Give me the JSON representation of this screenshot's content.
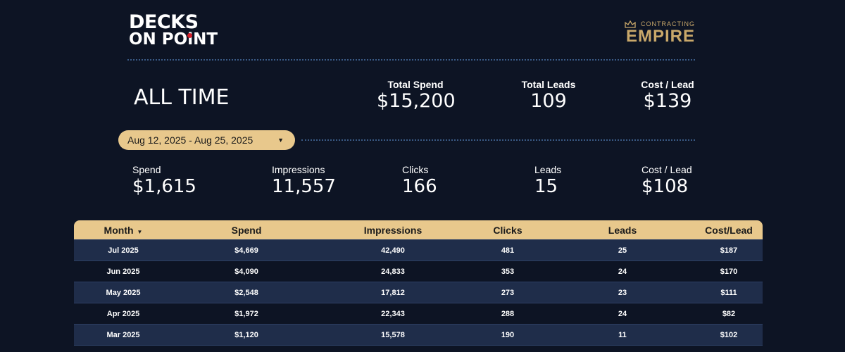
{
  "header": {
    "brand_line1": "DECKS",
    "brand_line2": "ON POiNT",
    "partner_small": "CONTRACTING",
    "partner_big": "EMPIRE",
    "crown_icon": "crown-icon"
  },
  "all_time": {
    "title": "ALL TIME",
    "kpis": [
      {
        "label": "Total Spend",
        "value": "$15,200"
      },
      {
        "label": "Total Leads",
        "value": "109"
      },
      {
        "label": "Cost / Lead",
        "value": "$139"
      }
    ]
  },
  "date_range": {
    "value": "Aug 12, 2025 - Aug 25, 2025",
    "caret_icon": "dropdown-caret-icon"
  },
  "period": {
    "kpis": [
      {
        "label": "Spend",
        "value": "$1,615"
      },
      {
        "label": "Impressions",
        "value": "11,557"
      },
      {
        "label": "Clicks",
        "value": "166"
      },
      {
        "label": "Leads",
        "value": "15"
      },
      {
        "label": "Cost / Lead",
        "value": "$108"
      }
    ]
  },
  "table": {
    "columns": [
      "Month",
      "Spend",
      "Impressions",
      "Clicks",
      "Leads",
      "Cost/Lead"
    ],
    "sort_icon": "sort-desc-icon",
    "rows": [
      [
        "Jul 2025",
        "$4,669",
        "42,490",
        "481",
        "25",
        "$187"
      ],
      [
        "Jun 2025",
        "$4,090",
        "24,833",
        "353",
        "24",
        "$170"
      ],
      [
        "May 2025",
        "$2,548",
        "17,812",
        "273",
        "23",
        "$111"
      ],
      [
        "Apr 2025",
        "$1,972",
        "22,343",
        "288",
        "24",
        "$82"
      ],
      [
        "Mar 2025",
        "$1,120",
        "15,578",
        "190",
        "11",
        "$102"
      ]
    ]
  },
  "colors": {
    "background": "#0d1424",
    "accent_gold": "#e8c88c",
    "row_stripe": "#1f2d4a",
    "brand_red": "#d4202a",
    "partner_gold": "#c9a86a"
  }
}
